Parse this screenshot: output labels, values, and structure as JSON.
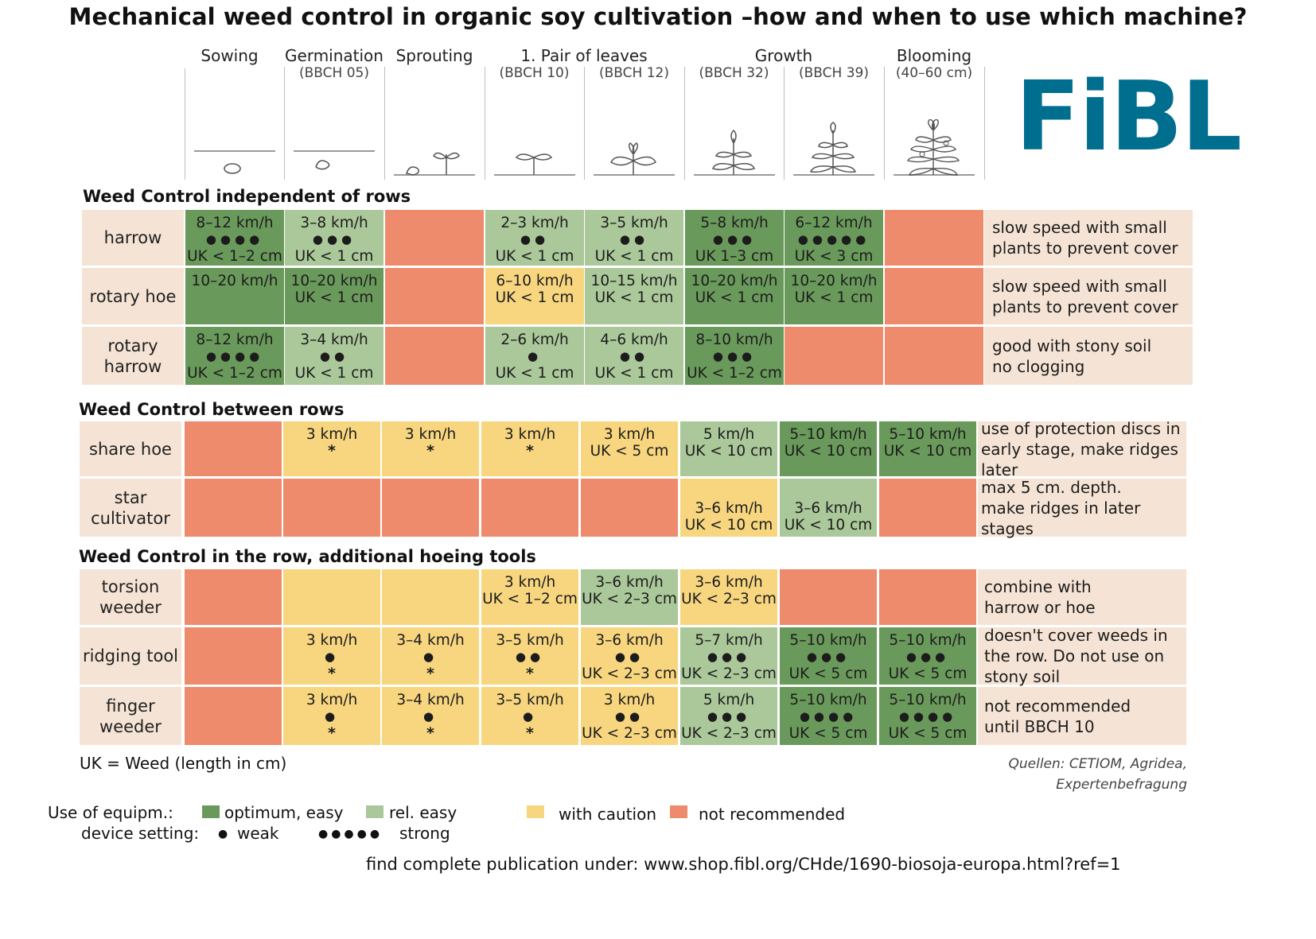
{
  "title": "Mechanical weed control in organic soy cultivation –how and when to use which machine?",
  "logo": "FiBL",
  "stages": [
    {
      "label": "Sowing",
      "sub": ""
    },
    {
      "label": "Germination",
      "sub": "(BBCH 05)"
    },
    {
      "label": "Sprouting",
      "sub": ""
    },
    {
      "label": "",
      "sub": "(BBCH 10)"
    },
    {
      "label": "",
      "sub": "(BBCH 12)"
    },
    {
      "label": "",
      "sub": "(BBCH 32)"
    },
    {
      "label": "",
      "sub": "(BBCH 39)"
    },
    {
      "label": "Blooming",
      "sub": "(40–60 cm)"
    }
  ],
  "stage_groups": {
    "pair_of_leaves": "1. Pair of leaves",
    "growth": "Growth"
  },
  "sections": [
    {
      "title": "Weed Control independent of rows",
      "rows": [
        {
          "label": "harrow",
          "note": "slow speed with small\nplants to prevent cover",
          "cells": [
            {
              "rating": "optimum",
              "lines": [
                "8–12 km/h",
                "●●●●",
                "UK < 1–2 cm"
              ]
            },
            {
              "rating": "rel-easy",
              "lines": [
                "3–8 km/h",
                "●●●",
                "UK < 1 cm"
              ]
            },
            {
              "rating": "not-recommended",
              "lines": []
            },
            {
              "rating": "rel-easy",
              "lines": [
                "2–3 km/h",
                "●●",
                "UK < 1 cm"
              ]
            },
            {
              "rating": "rel-easy",
              "lines": [
                "3–5 km/h",
                "●●",
                "UK < 1 cm"
              ]
            },
            {
              "rating": "optimum",
              "lines": [
                "5–8 km/h",
                "●●●",
                "UK 1–3 cm"
              ]
            },
            {
              "rating": "optimum",
              "lines": [
                "6–12 km/h",
                "●●●●●",
                "UK < 3 cm"
              ]
            },
            {
              "rating": "not-recommended",
              "lines": []
            }
          ]
        },
        {
          "label": "rotary hoe",
          "note": "slow speed with small\nplants to prevent cover",
          "cells": [
            {
              "rating": "optimum",
              "lines": [
                "10–20 km/h"
              ]
            },
            {
              "rating": "optimum",
              "lines": [
                "10–20 km/h",
                "UK < 1 cm"
              ]
            },
            {
              "rating": "not-recommended",
              "lines": []
            },
            {
              "rating": "caution",
              "lines": [
                "6–10 km/h",
                "UK < 1 cm"
              ]
            },
            {
              "rating": "rel-easy",
              "lines": [
                "10–15 km/h",
                "UK < 1 cm"
              ]
            },
            {
              "rating": "optimum",
              "lines": [
                "10–20 km/h",
                "UK < 1 cm"
              ]
            },
            {
              "rating": "optimum",
              "lines": [
                "10–20 km/h",
                "UK < 1 cm"
              ]
            },
            {
              "rating": "not-recommended",
              "lines": []
            }
          ]
        },
        {
          "label": "rotary\nharrow",
          "note": "good with stony soil\nno clogging",
          "cells": [
            {
              "rating": "optimum",
              "lines": [
                "8–12 km/h",
                "●●●●",
                "UK < 1–2 cm"
              ]
            },
            {
              "rating": "rel-easy",
              "lines": [
                "3–4 km/h",
                "●●",
                "UK < 1 cm"
              ]
            },
            {
              "rating": "not-recommended",
              "lines": []
            },
            {
              "rating": "rel-easy",
              "lines": [
                "2–6 km/h",
                "●",
                "UK < 1 cm"
              ]
            },
            {
              "rating": "rel-easy",
              "lines": [
                "4–6 km/h",
                "●●",
                "UK < 1 cm"
              ]
            },
            {
              "rating": "optimum",
              "lines": [
                "8–10 km/h",
                "●●●",
                "UK < 1–2 cm"
              ]
            },
            {
              "rating": "not-recommended",
              "lines": []
            },
            {
              "rating": "not-recommended",
              "lines": []
            }
          ]
        }
      ]
    },
    {
      "title": "Weed Control between rows",
      "rows": [
        {
          "label": "share hoe",
          "note": "use of protection discs in\nearly stage, make ridges later",
          "cells": [
            {
              "rating": "not-recommended",
              "lines": []
            },
            {
              "rating": "caution",
              "lines": [
                "3 km/h",
                "*"
              ]
            },
            {
              "rating": "caution",
              "lines": [
                "3 km/h",
                "*"
              ]
            },
            {
              "rating": "caution",
              "lines": [
                "3 km/h",
                "*"
              ]
            },
            {
              "rating": "caution",
              "lines": [
                "3 km/h",
                "UK < 5 cm"
              ]
            },
            {
              "rating": "rel-easy",
              "lines": [
                "5 km/h",
                "UK < 10 cm"
              ]
            },
            {
              "rating": "optimum",
              "lines": [
                "5–10 km/h",
                "UK < 10 cm"
              ]
            },
            {
              "rating": "optimum",
              "lines": [
                "5–10 km/h",
                "UK < 10 cm"
              ]
            }
          ]
        },
        {
          "label": "star\ncultivator",
          "note": "max 5 cm. depth.\nmake ridges in later stages",
          "cells": [
            {
              "rating": "not-recommended",
              "lines": []
            },
            {
              "rating": "not-recommended",
              "lines": []
            },
            {
              "rating": "not-recommended",
              "lines": []
            },
            {
              "rating": "not-recommended",
              "lines": []
            },
            {
              "rating": "not-recommended",
              "lines": []
            },
            {
              "rating": "caution",
              "lines": [
                "",
                "3–6 km/h",
                "UK < 10 cm"
              ]
            },
            {
              "rating": "rel-easy",
              "lines": [
                "",
                "3–6 km/h",
                "UK < 10 cm"
              ]
            },
            {
              "rating": "not-recommended",
              "lines": []
            }
          ]
        }
      ]
    },
    {
      "title": "Weed Control in the row, additional hoeing tools",
      "rows": [
        {
          "label": "torsion\nweeder",
          "note": "combine with\nharrow or hoe",
          "cells": [
            {
              "rating": "not-recommended",
              "lines": []
            },
            {
              "rating": "caution",
              "lines": []
            },
            {
              "rating": "caution",
              "lines": []
            },
            {
              "rating": "caution",
              "lines": [
                "3 km/h",
                "UK < 1–2 cm"
              ]
            },
            {
              "rating": "rel-easy",
              "lines": [
                "3–6 km/h",
                "UK < 2–3 cm"
              ]
            },
            {
              "rating": "caution",
              "lines": [
                "3–6 km/h",
                "UK < 2–3 cm"
              ]
            },
            {
              "rating": "not-recommended",
              "lines": []
            },
            {
              "rating": "not-recommended",
              "lines": []
            }
          ]
        },
        {
          "label": "ridging tool",
          "note": "doesn't cover weeds in\nthe row. Do not use on\nstony soil",
          "cells": [
            {
              "rating": "not-recommended",
              "lines": []
            },
            {
              "rating": "caution",
              "lines": [
                "3 km/h",
                "●",
                "*"
              ]
            },
            {
              "rating": "caution",
              "lines": [
                "3–4 km/h",
                "●",
                "*"
              ]
            },
            {
              "rating": "caution",
              "lines": [
                "3–5 km/h",
                "●●",
                "*"
              ]
            },
            {
              "rating": "caution",
              "lines": [
                "3–6 km/h",
                "●●",
                "UK < 2–3 cm"
              ]
            },
            {
              "rating": "rel-easy",
              "lines": [
                "5–7 km/h",
                "●●●",
                "UK < 2–3 cm"
              ]
            },
            {
              "rating": "optimum",
              "lines": [
                "5–10 km/h",
                "●●●",
                "UK < 5 cm"
              ]
            },
            {
              "rating": "optimum",
              "lines": [
                "5–10 km/h",
                "●●●",
                "UK < 5 cm"
              ]
            }
          ]
        },
        {
          "label": "finger\nweeder",
          "note": "not recommended\nuntil BBCH 10",
          "cells": [
            {
              "rating": "not-recommended",
              "lines": []
            },
            {
              "rating": "caution",
              "lines": [
                "3 km/h",
                "●",
                "*"
              ]
            },
            {
              "rating": "caution",
              "lines": [
                "3–4 km/h",
                "●",
                "*"
              ]
            },
            {
              "rating": "caution",
              "lines": [
                "3–5 km/h",
                "●",
                "*"
              ]
            },
            {
              "rating": "caution",
              "lines": [
                "3 km/h",
                "●●",
                "UK < 2–3 cm"
              ]
            },
            {
              "rating": "rel-easy",
              "lines": [
                "5 km/h",
                "●●●",
                "UK < 2–3 cm"
              ]
            },
            {
              "rating": "optimum",
              "lines": [
                "5–10 km/h",
                "●●●●",
                "UK < 5 cm"
              ]
            },
            {
              "rating": "optimum",
              "lines": [
                "5–10 km/h",
                "●●●●",
                "UK < 5 cm"
              ]
            }
          ]
        }
      ]
    }
  ],
  "uk_legend": "UK = Weed (length in cm)",
  "sources": [
    "Quellen: CETIOM, Agridea,",
    "Expertenbefragung"
  ],
  "legend": {
    "use_label": "Use of equipm.:",
    "optimum": "optimum, easy",
    "rel_easy": "rel. easy",
    "caution": "with caution",
    "not_recommended": "not recommended",
    "setting_label": "device setting:",
    "weak_symbol": "●",
    "weak": "weak",
    "strong_symbol": "●●●●●",
    "strong": "strong"
  },
  "colors": {
    "optimum": "#6a9a5b",
    "rel-easy": "#abc89a",
    "caution": "#f7d67f",
    "not-recommended": "#ee8b6d",
    "row-label-bg": "#f5e4d5",
    "logo": "#006e8f"
  },
  "footer": "find complete publication under: www.shop.fibl.org/CHde/1690-biosoja-europa.html?ref=1"
}
